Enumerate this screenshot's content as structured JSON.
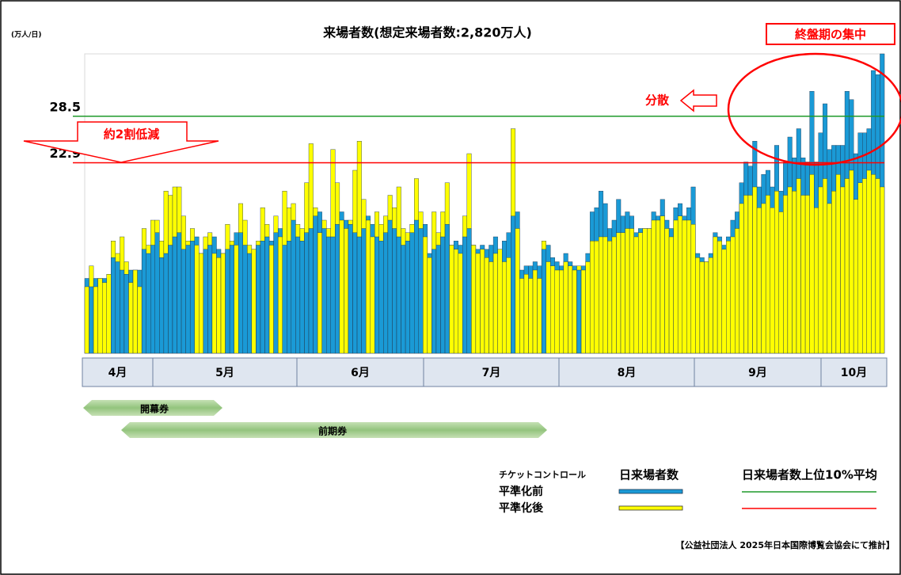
{
  "chart_data": {
    "type": "bar",
    "title": "来場者数(想定来場者数:2,820万人)",
    "unit_label": "(万人/日)",
    "categories": [
      null,
      null,
      null,
      null,
      null,
      null,
      null,
      null,
      null,
      null,
      null,
      null,
      null,
      null,
      null,
      null,
      null,
      null,
      null,
      null,
      null,
      null,
      null,
      null,
      null,
      null,
      null,
      null,
      null,
      null,
      null,
      null,
      null,
      null,
      null,
      null,
      null,
      null,
      null,
      null,
      null,
      null,
      null,
      null,
      null,
      null,
      null,
      null,
      null,
      null,
      null,
      null,
      null,
      null,
      null,
      null,
      null,
      null,
      null,
      null,
      null,
      null,
      null,
      null,
      null,
      null,
      null,
      null,
      null,
      null,
      null,
      null,
      null,
      null,
      null,
      null,
      null,
      null,
      null,
      null,
      null,
      null,
      null,
      null,
      null,
      null,
      null,
      null,
      null,
      null,
      null,
      null,
      null,
      null,
      null,
      null,
      null,
      null,
      null,
      null,
      null,
      null,
      null,
      null,
      null,
      null,
      null,
      null,
      null,
      null,
      null,
      null,
      null,
      null,
      null,
      null,
      null,
      null,
      null,
      null,
      null,
      null,
      null,
      null,
      null,
      null,
      null,
      null,
      null,
      null,
      null,
      null,
      null,
      null,
      null,
      null,
      null,
      null,
      null,
      null,
      null,
      null,
      null,
      null,
      null,
      null,
      null,
      null,
      null,
      null,
      null,
      null,
      null,
      null,
      null,
      null,
      null,
      null,
      null,
      null,
      null,
      null,
      null,
      null,
      null,
      null,
      null,
      null,
      null,
      null,
      null,
      null,
      null,
      null,
      null,
      null,
      null,
      null,
      null,
      null,
      null,
      null
    ],
    "months": [
      "4月",
      "5月",
      "6月",
      "7月",
      "8月",
      "9月",
      "10月"
    ],
    "ylim": [
      0,
      36
    ],
    "series": [
      {
        "name": "平準化前",
        "color": "#1a9ad6",
        "values": [
          9.0,
          8.0,
          9.0,
          9.0,
          9.0,
          9.5,
          11.5,
          11.0,
          10.0,
          9.5,
          10.0,
          10.0,
          10.0,
          12.5,
          12.0,
          13.0,
          14.5,
          11.5,
          12.0,
          13.0,
          14.0,
          14.5,
          12.5,
          13.0,
          13.5,
          14.0,
          12.0,
          12.5,
          13.0,
          14.0,
          12.5,
          12.0,
          12.5,
          13.0,
          14.5,
          14.5,
          13.0,
          12.0,
          12.5,
          13.0,
          13.5,
          14.0,
          13.5,
          14.5,
          15.0,
          13.0,
          13.5,
          16.0,
          14.0,
          13.5,
          14.5,
          15.0,
          16.5,
          17.0,
          15.0,
          14.0,
          14.0,
          15.5,
          17.0,
          16.0,
          15.5,
          14.5,
          14.0,
          15.0,
          16.5,
          15.5,
          14.0,
          13.5,
          14.5,
          16.0,
          15.0,
          14.0,
          13.0,
          13.5,
          14.5,
          16.0,
          15.0,
          15.5,
          12.0,
          12.5,
          13.0,
          14.0,
          15.5,
          13.0,
          13.5,
          13.0,
          14.0,
          15.0,
          13.0,
          12.5,
          13.0,
          12.5,
          13.0,
          14.0,
          12.5,
          13.5,
          14.5,
          16.5,
          17.0,
          10.0,
          10.5,
          10.5,
          11.0,
          10.5,
          12.5,
          13.0,
          11.5,
          11.0,
          10.5,
          12.0,
          11.0,
          10.5,
          10.0,
          10.5,
          12.0,
          17.0,
          17.5,
          19.5,
          18.0,
          15.0,
          16.0,
          18.5,
          16.5,
          17.0,
          16.5,
          14.5,
          15.0,
          15.0,
          15.0,
          17.0,
          16.5,
          18.5,
          16.0,
          15.0,
          17.5,
          18.0,
          16.5,
          17.5,
          20.0,
          12.0,
          11.5,
          11.0,
          12.0,
          14.5,
          14.0,
          13.0,
          14.0,
          16.0,
          17.0,
          20.5,
          23.0,
          22.5,
          25.5,
          20.0,
          21.5,
          22.0,
          20.0,
          25.0,
          19.5,
          23.0,
          26.0,
          23.5,
          27.0,
          23.5,
          23.0,
          31.5,
          23.0,
          26.5,
          30.0,
          24.5,
          25.0,
          25.0,
          25.0,
          31.5,
          30.5,
          24.0,
          26.5,
          26.5,
          27.0,
          34.0,
          33.5,
          36.0
        ]
      },
      {
        "name": "平準化後",
        "color": "#ffff00",
        "values": [
          8.0,
          10.5,
          8.0,
          9.0,
          8.5,
          9.5,
          13.5,
          12.0,
          14.0,
          11.0,
          8.5,
          10.0,
          8.0,
          15.0,
          13.0,
          16.0,
          16.0,
          13.5,
          19.5,
          19.0,
          20.0,
          20.0,
          16.5,
          13.5,
          15.0,
          13.0,
          12.0,
          14.0,
          14.5,
          12.0,
          11.5,
          12.0,
          15.5,
          13.5,
          13.0,
          18.0,
          16.0,
          13.0,
          12.5,
          13.5,
          17.5,
          15.5,
          13.0,
          16.5,
          14.0,
          19.5,
          17.5,
          18.0,
          15.5,
          15.0,
          20.5,
          25.2,
          17.5,
          14.5,
          16.0,
          15.0,
          24.5,
          20.5,
          16.0,
          15.0,
          16.0,
          22.0,
          25.5,
          18.5,
          16.0,
          14.0,
          17.0,
          15.5,
          16.5,
          19.0,
          17.5,
          20.0,
          15.0,
          14.5,
          15.5,
          21.0,
          17.0,
          14.0,
          11.5,
          17.0,
          14.5,
          17.0,
          20.5,
          13.0,
          12.5,
          12.0,
          16.5,
          24.0,
          13.0,
          12.0,
          12.5,
          11.5,
          11.0,
          12.0,
          12.5,
          11.0,
          11.5,
          27.0,
          15.0,
          9.0,
          9.5,
          9.0,
          10.0,
          9.0,
          13.5,
          11.0,
          10.5,
          10.0,
          10.0,
          11.0,
          10.5,
          10.0,
          10.5,
          10.0,
          11.0,
          13.5,
          13.5,
          14.0,
          14.0,
          13.5,
          14.0,
          14.5,
          14.5,
          15.0,
          15.0,
          14.0,
          14.5,
          15.0,
          15.0,
          16.0,
          16.0,
          16.5,
          15.0,
          14.0,
          16.0,
          16.5,
          16.0,
          16.0,
          15.5,
          11.5,
          11.0,
          11.0,
          11.5,
          14.0,
          13.5,
          12.5,
          13.5,
          14.0,
          15.0,
          18.0,
          19.0,
          19.0,
          20.0,
          17.5,
          18.0,
          19.0,
          17.5,
          19.5,
          17.0,
          19.0,
          20.0,
          19.5,
          21.0,
          19.0,
          19.0,
          21.5,
          17.5,
          20.0,
          21.0,
          18.0,
          19.5,
          21.5,
          20.0,
          21.0,
          22.0,
          18.5,
          20.5,
          21.0,
          22.0,
          21.5,
          21.0,
          20.0
        ]
      }
    ],
    "reference_lines": [
      {
        "value": 28.5,
        "color": "#1f9a2a"
      },
      {
        "value": 22.9,
        "color": "#ff0000"
      }
    ],
    "annotations": {
      "concentration": "終盤期の集中",
      "dispersion": "分散",
      "reduction": "約2割低減"
    },
    "tickets": [
      "開幕券",
      "前期券"
    ],
    "legend": {
      "control": "チケットコントロール",
      "daily": "日来場者数",
      "top10": "日来場者数上位10%平均"
    },
    "source": "【公益社団法人 2025年日本国際博覧会協会にて推計】"
  }
}
